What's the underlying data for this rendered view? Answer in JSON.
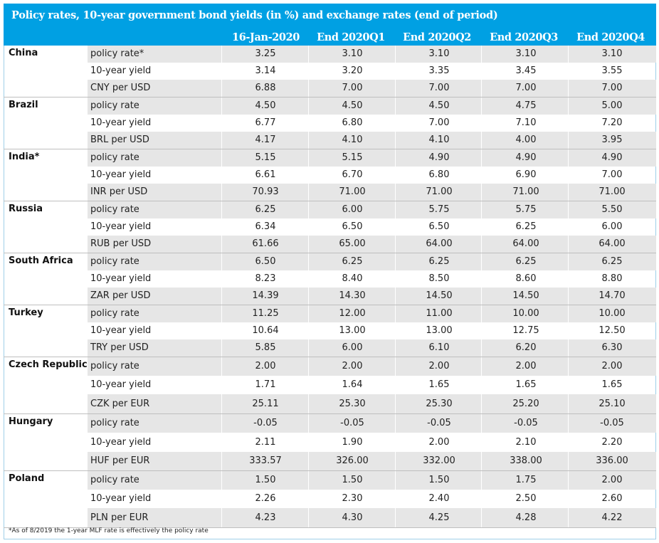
{
  "title": "Policy rates, 10-year government bond yields (in %) and exchange rates (end of period)",
  "columns": [
    "16-Jan-2020",
    "End 2020Q1",
    "End 2020Q2",
    "End 2020Q3",
    "End 2020Q4"
  ],
  "groups": [
    {
      "country": "China",
      "rows": [
        {
          "label": "policy rate*",
          "values": [
            "3.25",
            "3.10",
            "3.10",
            "3.10",
            "3.10"
          ]
        },
        {
          "label": "10-year yield",
          "values": [
            "3.14",
            "3.20",
            "3.35",
            "3.45",
            "3.55"
          ]
        },
        {
          "label": "CNY per USD",
          "values": [
            "6.88",
            "7.00",
            "7.00",
            "7.00",
            "7.00"
          ]
        }
      ]
    },
    {
      "country": "Brazil",
      "rows": [
        {
          "label": "policy rate",
          "values": [
            "4.50",
            "4.50",
            "4.50",
            "4.75",
            "5.00"
          ]
        },
        {
          "label": "10-year yield",
          "values": [
            "6.77",
            "6.80",
            "7.00",
            "7.10",
            "7.20"
          ]
        },
        {
          "label": "BRL per USD",
          "values": [
            "4.17",
            "4.10",
            "4.10",
            "4.00",
            "3.95"
          ]
        }
      ]
    },
    {
      "country": "India*",
      "rows": [
        {
          "label": "policy rate",
          "values": [
            "5.15",
            "5.15",
            "4.90",
            "4.90",
            "4.90"
          ]
        },
        {
          "label": "10-year yield",
          "values": [
            "6.61",
            "6.70",
            "6.80",
            "6.90",
            "7.00"
          ]
        },
        {
          "label": "INR per USD",
          "values": [
            "70.93",
            "71.00",
            "71.00",
            "71.00",
            "71.00"
          ]
        }
      ]
    },
    {
      "country": "Russia",
      "rows": [
        {
          "label": "policy rate",
          "values": [
            "6.25",
            "6.00",
            "5.75",
            "5.75",
            "5.50"
          ]
        },
        {
          "label": "10-year yield",
          "values": [
            "6.34",
            "6.50",
            "6.50",
            "6.25",
            "6.00"
          ]
        },
        {
          "label": "RUB per USD",
          "values": [
            "61.66",
            "65.00",
            "64.00",
            "64.00",
            "64.00"
          ]
        }
      ]
    },
    {
      "country": "South Africa",
      "rows": [
        {
          "label": "policy rate",
          "values": [
            "6.50",
            "6.25",
            "6.25",
            "6.25",
            "6.25"
          ]
        },
        {
          "label": "10-year yield",
          "values": [
            "8.23",
            "8.40",
            "8.50",
            "8.60",
            "8.80"
          ]
        },
        {
          "label": "ZAR per USD",
          "values": [
            "14.39",
            "14.30",
            "14.50",
            "14.50",
            "14.70"
          ]
        }
      ]
    },
    {
      "country": "Turkey",
      "rows": [
        {
          "label": "policy rate",
          "values": [
            "11.25",
            "12.00",
            "11.00",
            "10.00",
            "10.00"
          ]
        },
        {
          "label": "10-year yield",
          "values": [
            "10.64",
            "13.00",
            "13.00",
            "12.75",
            "12.50"
          ]
        },
        {
          "label": "TRY per USD",
          "values": [
            "5.85",
            "6.00",
            "6.10",
            "6.20",
            "6.30"
          ]
        }
      ]
    },
    {
      "country": "Czech Republic",
      "rows": [
        {
          "label": "policy rate",
          "values": [
            "2.00",
            "2.00",
            "2.00",
            "2.00",
            "2.00"
          ]
        },
        {
          "label": "10-year yield",
          "values": [
            "1.71",
            "1.64",
            "1.65",
            "1.65",
            "1.65"
          ]
        },
        {
          "label": "CZK per EUR",
          "values": [
            "25.11",
            "25.30",
            "25.30",
            "25.20",
            "25.10"
          ]
        }
      ]
    },
    {
      "country": "Hungary",
      "rows": [
        {
          "label": "policy rate",
          "values": [
            "-0.05",
            "-0.05",
            "-0.05",
            "-0.05",
            "-0.05"
          ]
        },
        {
          "label": "10-year yield",
          "values": [
            "2.11",
            "1.90",
            "2.00",
            "2.10",
            "2.20"
          ]
        },
        {
          "label": "HUF per EUR",
          "values": [
            "333.57",
            "326.00",
            "332.00",
            "338.00",
            "336.00"
          ]
        }
      ]
    },
    {
      "country": "Poland",
      "rows": [
        {
          "label": "policy rate",
          "values": [
            "1.50",
            "1.50",
            "1.50",
            "1.75",
            "2.00"
          ]
        },
        {
          "label": "10-year yield",
          "values": [
            "2.26",
            "2.30",
            "2.40",
            "2.50",
            "2.60"
          ]
        },
        {
          "label": "PLN per EUR",
          "values": [
            "4.23",
            "4.30",
            "4.25",
            "4.28",
            "4.22"
          ]
        }
      ]
    }
  ],
  "footnote": "*As of 8/2019 the 1-year MLF rate is effectively the policy rate"
}
